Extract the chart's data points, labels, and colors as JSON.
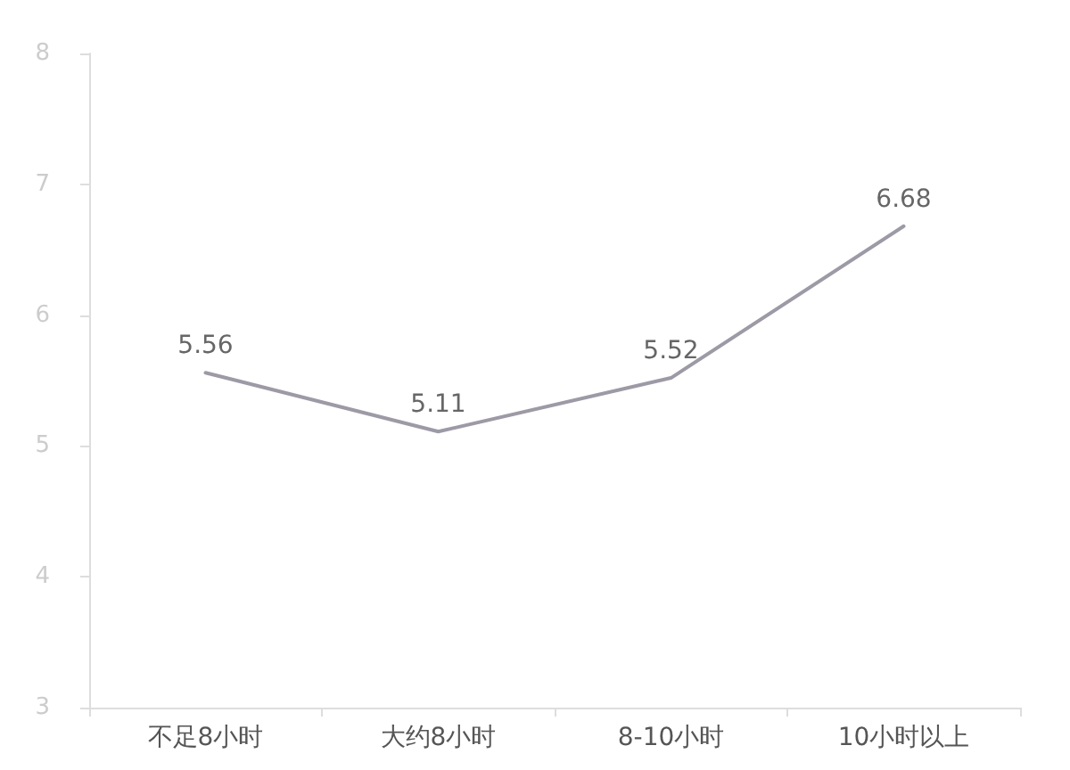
{
  "chart_data": {
    "type": "line",
    "categories": [
      "不足8小时",
      "大约8小时",
      "8-10小时",
      "10小时以上"
    ],
    "series": [
      {
        "color": "#9d9aa6",
        "values": [
          5.56,
          5.11,
          5.52,
          6.68
        ]
      }
    ],
    "ylim": [
      3,
      8
    ],
    "yticks": [
      3,
      4,
      5,
      6,
      7,
      8
    ],
    "grid": false,
    "marker": "none",
    "line_style": "solid",
    "data_labels": true
  }
}
